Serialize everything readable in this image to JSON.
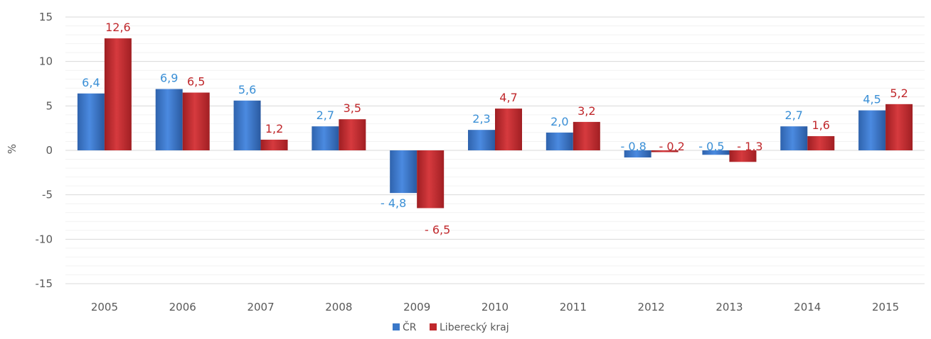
{
  "chart_data": {
    "type": "bar",
    "title": "",
    "xlabel": "",
    "ylabel": "%",
    "ylim": [
      -15,
      15
    ],
    "yticks": [
      15,
      10,
      5,
      0,
      -5,
      -10,
      -15
    ],
    "grid": true,
    "legend_position": "bottom",
    "categories": [
      "2005",
      "2006",
      "2007",
      "2008",
      "2009",
      "2010",
      "2011",
      "2012",
      "2013",
      "2014",
      "2015"
    ],
    "series": [
      {
        "name": "ČR",
        "color": "#3a78c9",
        "label_color": "#3a8fd6",
        "values": [
          6.4,
          6.9,
          5.6,
          2.7,
          -4.8,
          2.3,
          2.0,
          -0.8,
          -0.5,
          2.7,
          4.5
        ],
        "labels": [
          "6,4",
          "6,9",
          "5,6",
          "2,7",
          "- 4,8",
          "2,3",
          "2,0",
          "- 0,8",
          "- 0,5",
          "2,7",
          "4,5"
        ]
      },
      {
        "name": "Liberecký kraj",
        "color": "#c0282c",
        "label_color": "#c0282c",
        "values": [
          12.6,
          6.5,
          1.2,
          3.5,
          -6.5,
          4.7,
          3.2,
          -0.2,
          -1.3,
          1.6,
          5.2
        ],
        "labels": [
          "12,6",
          "6,5",
          "1,2",
          "3,5",
          "- 6,5",
          "4,7",
          "3,2",
          "- 0,2",
          "- 1,3",
          "1,6",
          "5,2"
        ]
      }
    ]
  }
}
